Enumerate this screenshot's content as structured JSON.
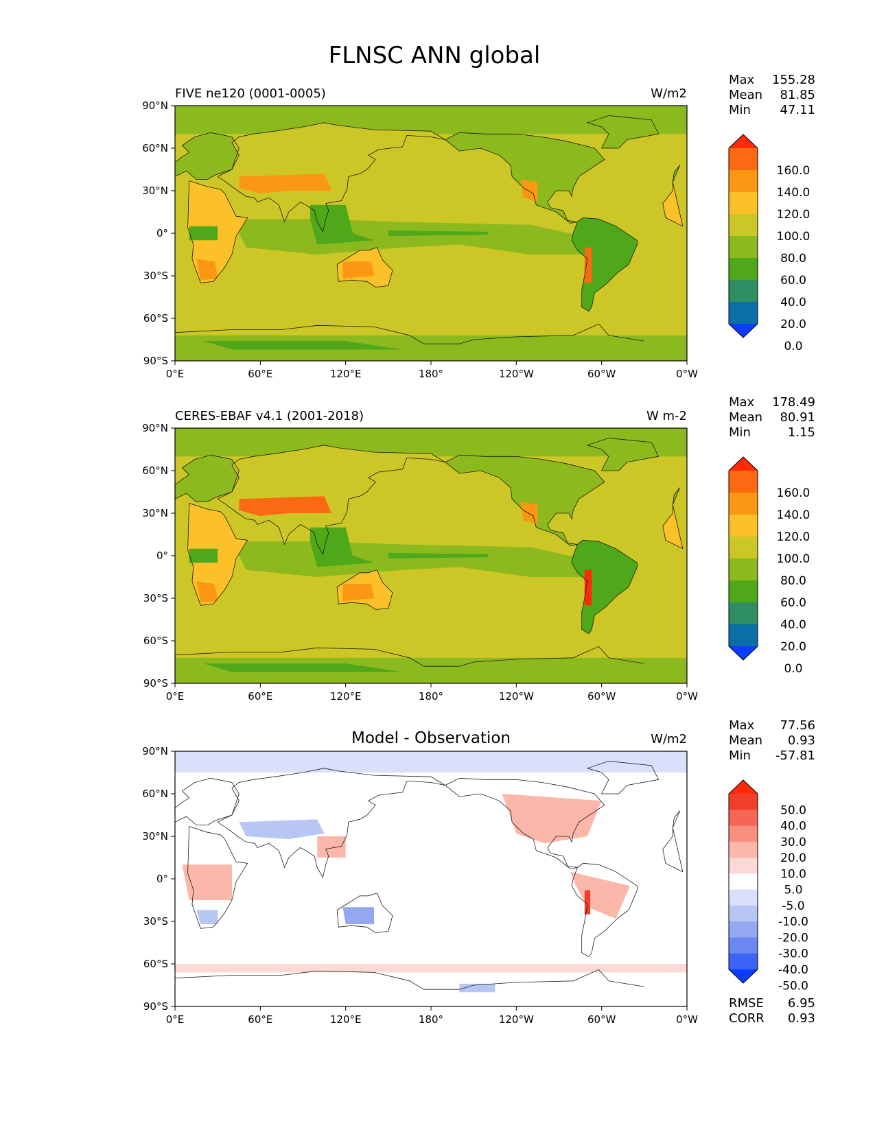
{
  "figure": {
    "title": "FLNSC ANN global"
  },
  "colors": {
    "abs_levels": [
      "#0b3cff",
      "#0c6ea6",
      "#2f8f63",
      "#4ea81a",
      "#8cba1e",
      "#cdc627",
      "#fcc129",
      "#fb9712",
      "#fb6a12",
      "#ff2a0a"
    ],
    "diff_levels": [
      "#0b3cff",
      "#3b63f5",
      "#6b88f0",
      "#93a8f1",
      "#b8c6f6",
      "#d8e0fb",
      "#ffffff",
      "#fbd9d4",
      "#fbb7a9",
      "#f98f7d",
      "#f76654",
      "#f23f2a",
      "#ff2a0a"
    ],
    "land_outline": "#1a1a1a"
  },
  "x_ticks": [
    "0°E",
    "60°E",
    "120°E",
    "180°",
    "120°W",
    "60°W",
    "0°W"
  ],
  "y_ticks": [
    "90°N",
    "60°N",
    "30°N",
    "0°",
    "30°S",
    "60°S",
    "90°S"
  ],
  "chart_data": [
    {
      "type": "heatmap",
      "title_left": "FIVE ne120 (0001-0005)",
      "title_center": "",
      "units": "W/m2",
      "stats": {
        "Max": "155.28",
        "Mean": "81.85",
        "Min": "47.11"
      },
      "colorbar_ticks": [
        "160.0",
        "140.0",
        "120.0",
        "100.0",
        "80.0",
        "60.0",
        "40.0",
        "20.0",
        "0.0"
      ],
      "colorbar_palette": "abs",
      "xlim": [
        0,
        360
      ],
      "ylim": [
        -90,
        90
      ]
    },
    {
      "type": "heatmap",
      "title_left": "CERES-EBAF v4.1 (2001-2018)",
      "title_center": "",
      "units": "W m-2",
      "stats": {
        "Max": "178.49",
        "Mean": "80.91",
        "Min": "1.15"
      },
      "colorbar_ticks": [
        "160.0",
        "140.0",
        "120.0",
        "100.0",
        "80.0",
        "60.0",
        "40.0",
        "20.0",
        "0.0"
      ],
      "colorbar_palette": "abs",
      "xlim": [
        0,
        360
      ],
      "ylim": [
        -90,
        90
      ]
    },
    {
      "type": "heatmap",
      "title_left": "",
      "title_center": "Model - Observation",
      "units": "W/m2",
      "stats": {
        "Max": "77.56",
        "Mean": "0.93",
        "Min": "-57.81"
      },
      "colorbar_ticks": [
        "50.0",
        "40.0",
        "30.0",
        "20.0",
        "10.0",
        "5.0",
        "-5.0",
        "-10.0",
        "-20.0",
        "-30.0",
        "-40.0",
        "-50.0"
      ],
      "colorbar_palette": "diff",
      "metrics": {
        "RMSE": "6.95",
        "CORR": "0.93"
      },
      "xlim": [
        0,
        360
      ],
      "ylim": [
        -90,
        90
      ]
    }
  ]
}
